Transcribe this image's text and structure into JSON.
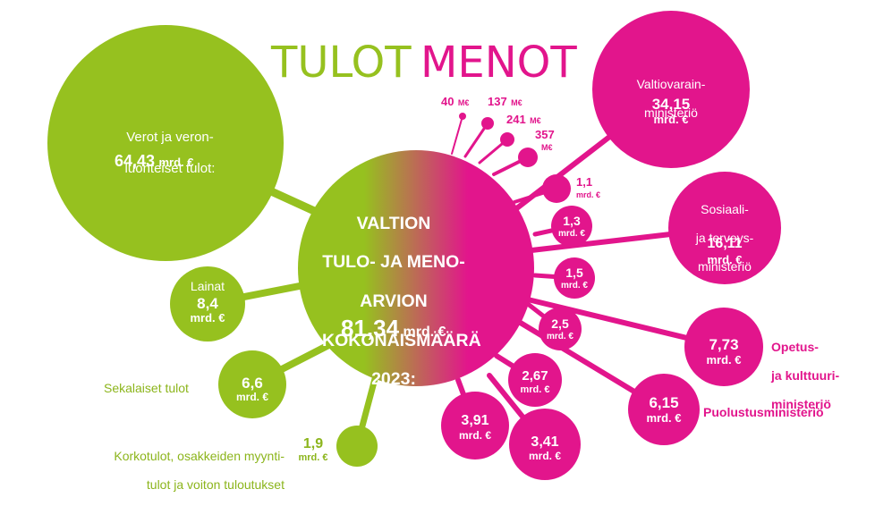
{
  "colors": {
    "income": "#96c11f",
    "expense": "#e2158c",
    "text_green": "#8cb51c",
    "text_pink": "#e2158c"
  },
  "title": {
    "income_word": "TULOT",
    "expense_word": "MENOT"
  },
  "center": {
    "lines": [
      "VALTION",
      "TULO- JA MENO-",
      "ARVION",
      "KOKONAISMÄÄRÄ",
      "2023:"
    ],
    "total_value": "81,34",
    "total_unit": "mrd. €"
  },
  "income": [
    {
      "id": "verot",
      "label": [
        "Verot ja veron-",
        "luonteiset tulot:"
      ],
      "value": "64,43",
      "unit": "mrd. €",
      "amount_bn": 64.43
    },
    {
      "id": "lainat",
      "label": [
        "Lainat"
      ],
      "value": "8,4",
      "unit": "mrd. €",
      "amount_bn": 8.4
    },
    {
      "id": "sekalaiset",
      "label": [
        "Sekalaiset tulot"
      ],
      "value": "6,6",
      "unit": "mrd. €",
      "amount_bn": 6.6
    },
    {
      "id": "korkotulot",
      "label": [
        "Korkotulot, osakkeiden myynti-",
        "tulot ja voiton tuloutukset"
      ],
      "value": "1,9",
      "unit": "mrd. €",
      "amount_bn": 1.9
    }
  ],
  "expenses": [
    {
      "id": "vm",
      "label": [
        "Valtiovarain-",
        "ministeriö"
      ],
      "value": "34,15",
      "unit": "mrd. €",
      "amount_bn": 34.15
    },
    {
      "id": "stm",
      "label": [
        "Sosiaali-",
        "ja terveys-",
        "ministeriö"
      ],
      "value": "16,11",
      "unit": "mrd. €",
      "amount_bn": 16.11
    },
    {
      "id": "okm",
      "label": [
        "Opetus-",
        "ja kulttuuri-",
        "ministeriö"
      ],
      "value": "7,73",
      "unit": "mrd. €",
      "amount_bn": 7.73
    },
    {
      "id": "puolustus",
      "label": [
        "Puolustusministeriö"
      ],
      "value": "6,15",
      "unit": "mrd. €",
      "amount_bn": 6.15
    },
    {
      "id": "e341",
      "label": [],
      "value": "3,41",
      "unit": "mrd. €",
      "amount_bn": 3.41
    },
    {
      "id": "e391",
      "label": [],
      "value": "3,91",
      "unit": "mrd. €",
      "amount_bn": 3.91
    },
    {
      "id": "e267",
      "label": [],
      "value": "2,67",
      "unit": "mrd. €",
      "amount_bn": 2.67
    },
    {
      "id": "e25",
      "label": [],
      "value": "2,5",
      "unit": "mrd. €",
      "amount_bn": 2.5
    },
    {
      "id": "e15",
      "label": [],
      "value": "1,5",
      "unit": "mrd. €",
      "amount_bn": 1.5
    },
    {
      "id": "e13",
      "label": [],
      "value": "1,3",
      "unit": "mrd. €",
      "amount_bn": 1.3
    },
    {
      "id": "e11",
      "label": [],
      "value": "1,1",
      "unit": "mrd. €",
      "amount_bn": 1.1
    },
    {
      "id": "e357",
      "label": [],
      "value": "357",
      "unit": "M€",
      "amount_bn": 0.357
    },
    {
      "id": "e241",
      "label": [],
      "value": "241",
      "unit": "M€",
      "amount_bn": 0.241
    },
    {
      "id": "e137",
      "label": [],
      "value": "137",
      "unit": "M€",
      "amount_bn": 0.137
    },
    {
      "id": "e40",
      "label": [],
      "value": "40",
      "unit": "M€",
      "amount_bn": 0.04
    }
  ]
}
